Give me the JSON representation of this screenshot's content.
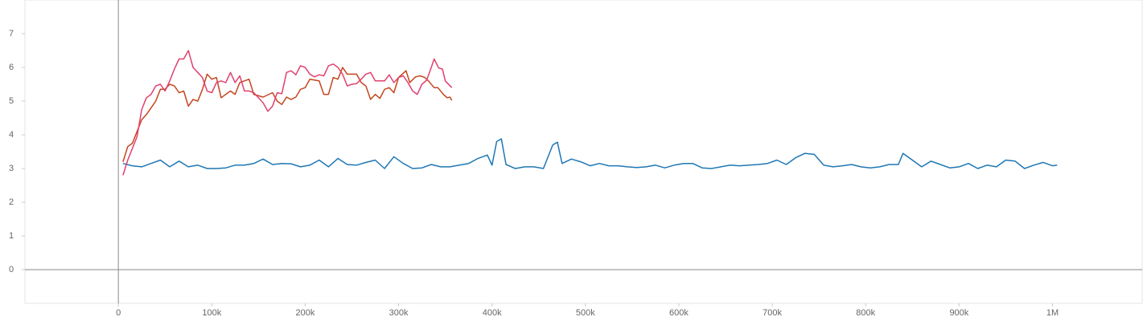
{
  "chart_data": {
    "type": "line",
    "xlim": [
      -100000,
      1096000
    ],
    "ylim": [
      -1,
      8
    ],
    "xticks": [
      0,
      {
        "value": 100000,
        "label": "100k"
      },
      {
        "value": 200000,
        "label": "200k"
      },
      {
        "value": 300000,
        "label": "300k"
      },
      {
        "value": 400000,
        "label": "400k"
      },
      {
        "value": 500000,
        "label": "500k"
      },
      {
        "value": 600000,
        "label": "600k"
      },
      {
        "value": 700000,
        "label": "700k"
      },
      {
        "value": 800000,
        "label": "800k"
      },
      {
        "value": 900000,
        "label": "900k"
      },
      {
        "value": 1000000,
        "label": "1M"
      }
    ],
    "yticks": [
      0,
      1,
      2,
      3,
      4,
      5,
      6,
      7
    ],
    "series": [
      {
        "color": "#1f77b4",
        "x": [
          5000,
          15000,
          25000,
          35000,
          45000,
          55000,
          65000,
          75000,
          85000,
          95000,
          105000,
          115000,
          125000,
          135000,
          145000,
          155000,
          165000,
          175000,
          185000,
          195000,
          205000,
          215000,
          225000,
          235000,
          245000,
          255000,
          265000,
          275000,
          285000,
          295000,
          305000,
          315000,
          325000,
          335000,
          345000,
          355000,
          365000,
          375000,
          385000,
          395000,
          400000,
          405000,
          410000,
          415000,
          425000,
          435000,
          445000,
          455000,
          465000,
          470000,
          475000,
          485000,
          495000,
          505000,
          515000,
          525000,
          535000,
          545000,
          555000,
          565000,
          575000,
          585000,
          595000,
          605000,
          615000,
          625000,
          635000,
          645000,
          655000,
          665000,
          675000,
          685000,
          695000,
          705000,
          715000,
          725000,
          735000,
          745000,
          755000,
          765000,
          775000,
          785000,
          795000,
          805000,
          815000,
          825000,
          835000,
          840000,
          850000,
          860000,
          870000,
          880000,
          890000,
          900000,
          910000,
          920000,
          930000,
          940000,
          950000,
          960000,
          970000,
          980000,
          990000,
          1000000,
          1005000
        ],
        "values": [
          3.15,
          3.08,
          3.05,
          3.15,
          3.25,
          3.05,
          3.22,
          3.05,
          3.1,
          3.0,
          3.0,
          3.02,
          3.1,
          3.1,
          3.15,
          3.28,
          3.12,
          3.15,
          3.14,
          3.05,
          3.1,
          3.25,
          3.05,
          3.3,
          3.12,
          3.1,
          3.18,
          3.25,
          3.0,
          3.35,
          3.15,
          3.0,
          3.02,
          3.12,
          3.05,
          3.05,
          3.1,
          3.15,
          3.3,
          3.4,
          3.1,
          3.8,
          3.88,
          3.12,
          3.0,
          3.05,
          3.05,
          3.0,
          3.7,
          3.78,
          3.15,
          3.28,
          3.2,
          3.08,
          3.15,
          3.08,
          3.08,
          3.05,
          3.03,
          3.05,
          3.1,
          3.02,
          3.1,
          3.15,
          3.15,
          3.02,
          3.0,
          3.05,
          3.1,
          3.08,
          3.1,
          3.12,
          3.15,
          3.25,
          3.12,
          3.32,
          3.45,
          3.42,
          3.1,
          3.05,
          3.08,
          3.12,
          3.05,
          3.02,
          3.05,
          3.12,
          3.12,
          3.45,
          3.25,
          3.05,
          3.22,
          3.12,
          3.02,
          3.05,
          3.15,
          3.0,
          3.1,
          3.05,
          3.25,
          3.22,
          3.0,
          3.1,
          3.18,
          3.08,
          3.1
        ]
      },
      {
        "color": "#c4461e",
        "x": [
          5000,
          10000,
          15000,
          20000,
          25000,
          30000,
          35000,
          40000,
          45000,
          50000,
          55000,
          60000,
          65000,
          70000,
          75000,
          80000,
          85000,
          90000,
          95000,
          100000,
          105000,
          110000,
          120000,
          125000,
          130000,
          140000,
          145000,
          155000,
          165000,
          170000,
          175000,
          180000,
          185000,
          190000,
          195000,
          200000,
          205000,
          215000,
          220000,
          225000,
          230000,
          235000,
          240000,
          245000,
          255000,
          260000,
          265000,
          270000,
          275000,
          280000,
          285000,
          290000,
          295000,
          300000,
          308000,
          312000,
          318000,
          323000,
          328000,
          332000,
          338000,
          342000,
          348000,
          352000,
          355000,
          357000
        ],
        "values": [
          3.2,
          3.65,
          3.75,
          4.1,
          4.45,
          4.6,
          4.8,
          5.0,
          5.35,
          5.35,
          5.5,
          5.45,
          5.25,
          5.3,
          4.85,
          5.05,
          5.0,
          5.35,
          5.8,
          5.65,
          5.7,
          5.1,
          5.3,
          5.2,
          5.55,
          5.65,
          5.2,
          5.12,
          5.25,
          5.0,
          4.9,
          5.12,
          5.05,
          5.12,
          5.35,
          5.4,
          5.65,
          5.6,
          5.2,
          5.2,
          5.7,
          5.65,
          6.0,
          5.8,
          5.8,
          5.55,
          5.45,
          5.05,
          5.2,
          5.08,
          5.35,
          5.4,
          5.25,
          5.7,
          5.9,
          5.55,
          5.72,
          5.75,
          5.7,
          5.6,
          5.4,
          5.4,
          5.2,
          5.1,
          5.12,
          5.02
        ]
      },
      {
        "color": "#e0416e",
        "x": [
          5000,
          10000,
          15000,
          20000,
          25000,
          30000,
          35000,
          40000,
          45000,
          50000,
          55000,
          60000,
          65000,
          70000,
          75000,
          80000,
          85000,
          90000,
          95000,
          100000,
          105000,
          110000,
          115000,
          120000,
          125000,
          130000,
          135000,
          140000,
          145000,
          150000,
          155000,
          160000,
          165000,
          170000,
          175000,
          180000,
          185000,
          190000,
          195000,
          200000,
          205000,
          210000,
          215000,
          220000,
          225000,
          230000,
          235000,
          240000,
          245000,
          250000,
          255000,
          260000,
          265000,
          270000,
          275000,
          280000,
          285000,
          290000,
          295000,
          300000,
          305000,
          310000,
          315000,
          320000,
          325000,
          330000,
          335000,
          338000,
          343000,
          347000,
          350000,
          357000
        ],
        "values": [
          2.8,
          3.25,
          3.6,
          3.95,
          4.75,
          5.1,
          5.2,
          5.45,
          5.5,
          5.3,
          5.6,
          5.95,
          6.25,
          6.25,
          6.5,
          6.0,
          5.85,
          5.7,
          5.3,
          5.25,
          5.55,
          5.6,
          5.55,
          5.85,
          5.55,
          5.75,
          5.3,
          5.3,
          5.25,
          5.1,
          4.95,
          4.7,
          4.85,
          5.25,
          5.22,
          5.85,
          5.9,
          5.78,
          6.05,
          6.0,
          5.8,
          5.72,
          5.78,
          5.75,
          6.05,
          6.1,
          6.0,
          5.8,
          5.45,
          5.5,
          5.52,
          5.65,
          5.8,
          5.85,
          5.6,
          5.6,
          5.6,
          5.78,
          5.55,
          5.7,
          5.75,
          5.55,
          5.3,
          5.2,
          5.5,
          5.62,
          6.0,
          6.25,
          5.98,
          5.95,
          5.6,
          5.4
        ]
      }
    ]
  }
}
